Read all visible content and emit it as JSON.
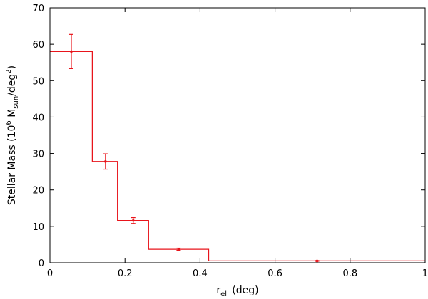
{
  "chart_data": {
    "type": "line",
    "style": "step-histogram-with-error-bars",
    "title": "",
    "xlabel": {
      "main": "r",
      "sub": "ell",
      "suffix": " (deg)"
    },
    "ylabel": {
      "prefix": "Stellar Mass (10",
      "sup1": "6",
      "mid": " M",
      "sub": "sun",
      "suffix1": "/deg",
      "sup2": "2",
      "suffix2": ")"
    },
    "xlim": [
      0,
      1
    ],
    "ylim": [
      0,
      70
    ],
    "xticks": [
      "0",
      "0.2",
      "0.4",
      "0.6",
      "0.8",
      "1"
    ],
    "yticks": [
      "0",
      "10",
      "20",
      "30",
      "40",
      "50",
      "60",
      "70"
    ],
    "xtick_values": [
      0,
      0.2,
      0.4,
      0.6,
      0.8,
      1.0
    ],
    "ytick_values": [
      0,
      10,
      20,
      30,
      40,
      50,
      60,
      70
    ],
    "grid": false,
    "color": "#e8141b",
    "bins": [
      {
        "x0": 0.0,
        "x1": 0.113,
        "value": 58.0
      },
      {
        "x0": 0.113,
        "x1": 0.18,
        "value": 27.8
      },
      {
        "x0": 0.18,
        "x1": 0.263,
        "value": 11.6
      },
      {
        "x0": 0.263,
        "x1": 0.423,
        "value": 3.7
      },
      {
        "x0": 0.423,
        "x1": 1.0,
        "value": 0.5
      }
    ],
    "points": [
      {
        "x": 0.057,
        "y": 58.0,
        "err": 4.7
      },
      {
        "x": 0.148,
        "y": 27.8,
        "err": 2.1
      },
      {
        "x": 0.222,
        "y": 11.6,
        "err": 0.8
      },
      {
        "x": 0.343,
        "y": 3.7,
        "err": 0.3
      },
      {
        "x": 0.712,
        "y": 0.5,
        "err": 0.1
      }
    ]
  }
}
